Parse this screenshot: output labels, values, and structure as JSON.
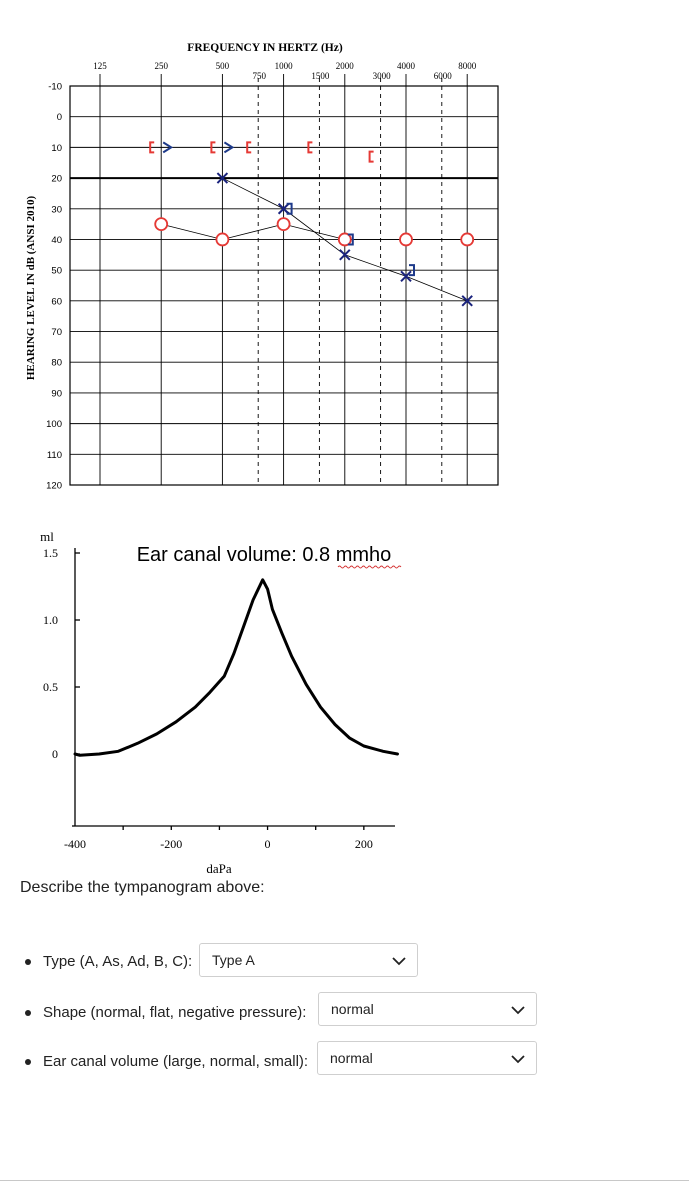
{
  "chart_data": [
    {
      "type": "scatter",
      "title": "FREQUENCY IN HERTZ (Hz)",
      "ylabel": "HEARING LEVEL IN dB (ANSI 2010)",
      "x_ticks_top": [
        "125",
        "250",
        "500",
        "1000",
        "2000",
        "4000",
        "8000"
      ],
      "x_ticks_mid": [
        "750",
        "1500",
        "3000",
        "6000"
      ],
      "y_ticks": [
        "-10",
        "0",
        "10",
        "20",
        "30",
        "40",
        "50",
        "60",
        "70",
        "80",
        "90",
        "100",
        "110",
        "120"
      ],
      "ylim": [
        -10,
        120
      ],
      "reference_line_db": 20,
      "series": [
        {
          "marker": "X",
          "color": "#1a237e",
          "connected": true,
          "x": [
            500,
            1000,
            2000,
            4000,
            8000
          ],
          "y": [
            20,
            30,
            45,
            52,
            60
          ]
        },
        {
          "marker": "O",
          "color": "#e53935",
          "connected": true,
          "x": [
            250,
            500,
            1000,
            2000,
            4000,
            8000
          ],
          "y": [
            35,
            40,
            35,
            40,
            40,
            40
          ]
        },
        {
          "marker": ">",
          "color": "#1e3a8a",
          "connected": false,
          "x": [
            250,
            500
          ],
          "y": [
            10,
            10
          ]
        },
        {
          "marker": "[",
          "color": "#e53935",
          "connected": false,
          "x": [
            250,
            500,
            750,
            1500,
            3000
          ],
          "y": [
            10,
            10,
            10,
            10,
            13
          ]
        },
        {
          "marker": "]",
          "color": "#1e3a8a",
          "connected": false,
          "x": [
            1000,
            2000,
            4000
          ],
          "y": [
            30,
            40,
            50
          ]
        }
      ]
    },
    {
      "type": "line",
      "title": "Ear canal volume: 0.8 mmho",
      "xlabel": "daPa",
      "ylabel": "ml",
      "x_ticks": [
        "-400",
        "-200",
        "0",
        "200"
      ],
      "y_ticks": [
        "1.5",
        "1.0",
        "0.5",
        "0"
      ],
      "xlim": [
        -400,
        300
      ],
      "ylim": [
        0,
        1.5
      ],
      "x": [
        -400,
        -390,
        -350,
        -310,
        -270,
        -230,
        -190,
        -150,
        -120,
        -90,
        -70,
        -50,
        -30,
        -10,
        0,
        10,
        30,
        50,
        80,
        110,
        140,
        170,
        200,
        240,
        270
      ],
      "y": [
        0.0,
        -0.01,
        0.0,
        0.02,
        0.08,
        0.15,
        0.24,
        0.35,
        0.46,
        0.58,
        0.75,
        0.95,
        1.15,
        1.3,
        1.23,
        1.08,
        0.9,
        0.73,
        0.52,
        0.35,
        0.22,
        0.12,
        0.06,
        0.02,
        0.0
      ]
    }
  ],
  "question": {
    "prompt": "Describe the tympanogram above:",
    "items": [
      {
        "label": "Type (A, As, Ad, B, C):",
        "selected": "Type A"
      },
      {
        "label": "Shape (normal, flat, negative pressure):",
        "selected": "normal"
      },
      {
        "label": "Ear canal volume (large, normal, small):",
        "selected": "normal"
      }
    ]
  }
}
